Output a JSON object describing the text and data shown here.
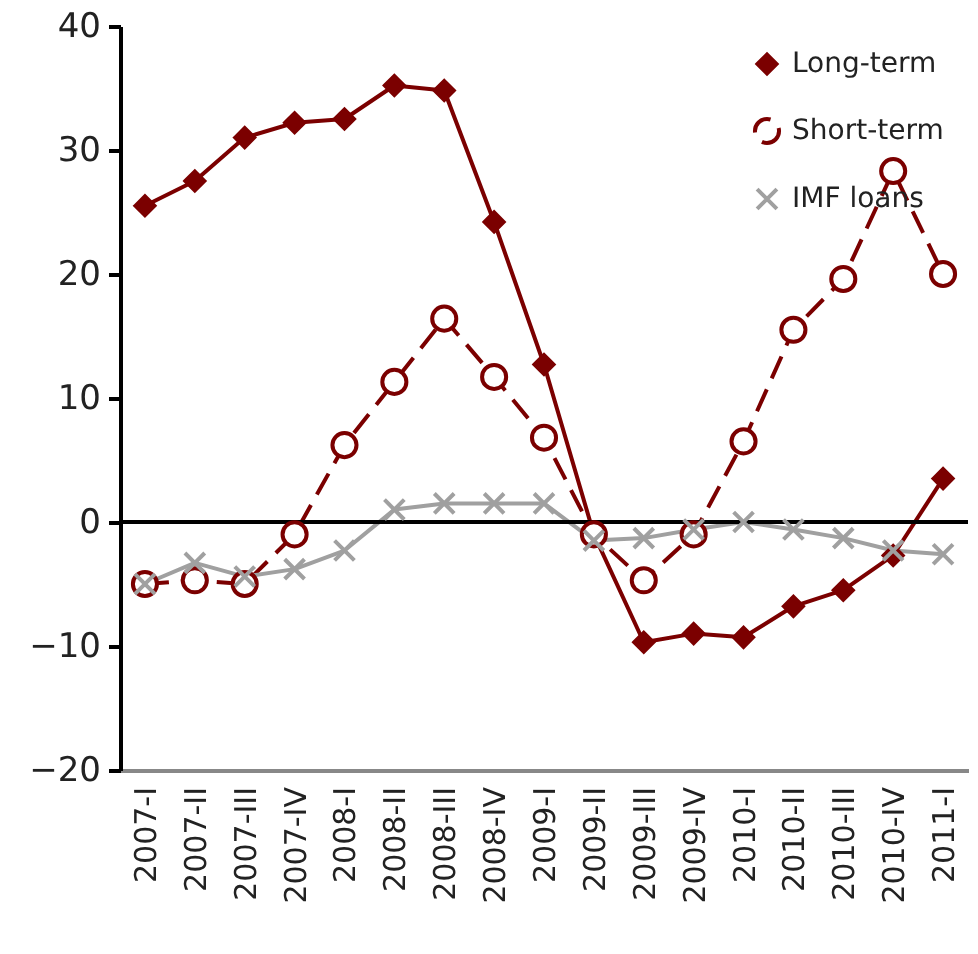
{
  "chart_data": {
    "type": "line",
    "categories": [
      "2007-I",
      "2007-II",
      "2007-III",
      "2007-IV",
      "2008-I",
      "2008-II",
      "2008-III",
      "2008-IV",
      "2009-I",
      "2009-II",
      "2009-III",
      "2009-IV",
      "2010-I",
      "2010-II",
      "2010-III",
      "2010-IV",
      "2011-I"
    ],
    "series": [
      {
        "name": "Long-term",
        "color": "#7b0000",
        "marker": "diamond",
        "line_style": "solid",
        "values": [
          25.5,
          27.5,
          31,
          32.2,
          32.5,
          35.2,
          34.8,
          24.2,
          12.7,
          -1,
          -9.7,
          -9,
          -9.3,
          -6.8,
          -5.5,
          -2.7,
          3.5
        ]
      },
      {
        "name": "Short-term",
        "color": "#7b0000",
        "marker": "circle",
        "line_style": "dashed",
        "values": [
          -5,
          -4.7,
          -5,
          -1,
          6.2,
          11.3,
          16.4,
          11.7,
          6.8,
          -1,
          -4.7,
          -1,
          6.5,
          15.5,
          19.6,
          28.3,
          20
        ]
      },
      {
        "name": "IMF loans",
        "color": "#a0a0a0",
        "marker": "cross",
        "line_style": "solid",
        "values": [
          -5,
          -3.3,
          -4.4,
          -3.8,
          -2.3,
          1,
          1.5,
          1.5,
          1.5,
          -1.5,
          -1.3,
          -0.6,
          0,
          -0.6,
          -1.3,
          -2.3,
          -2.6
        ]
      }
    ],
    "ylim": [
      -20,
      40
    ],
    "yticks": [
      -20,
      -10,
      0,
      10,
      20,
      30,
      40
    ],
    "ref_lines": [
      {
        "axis": "y",
        "value": 0,
        "color": "#000000"
      }
    ],
    "grid": false,
    "legend": "top right"
  }
}
